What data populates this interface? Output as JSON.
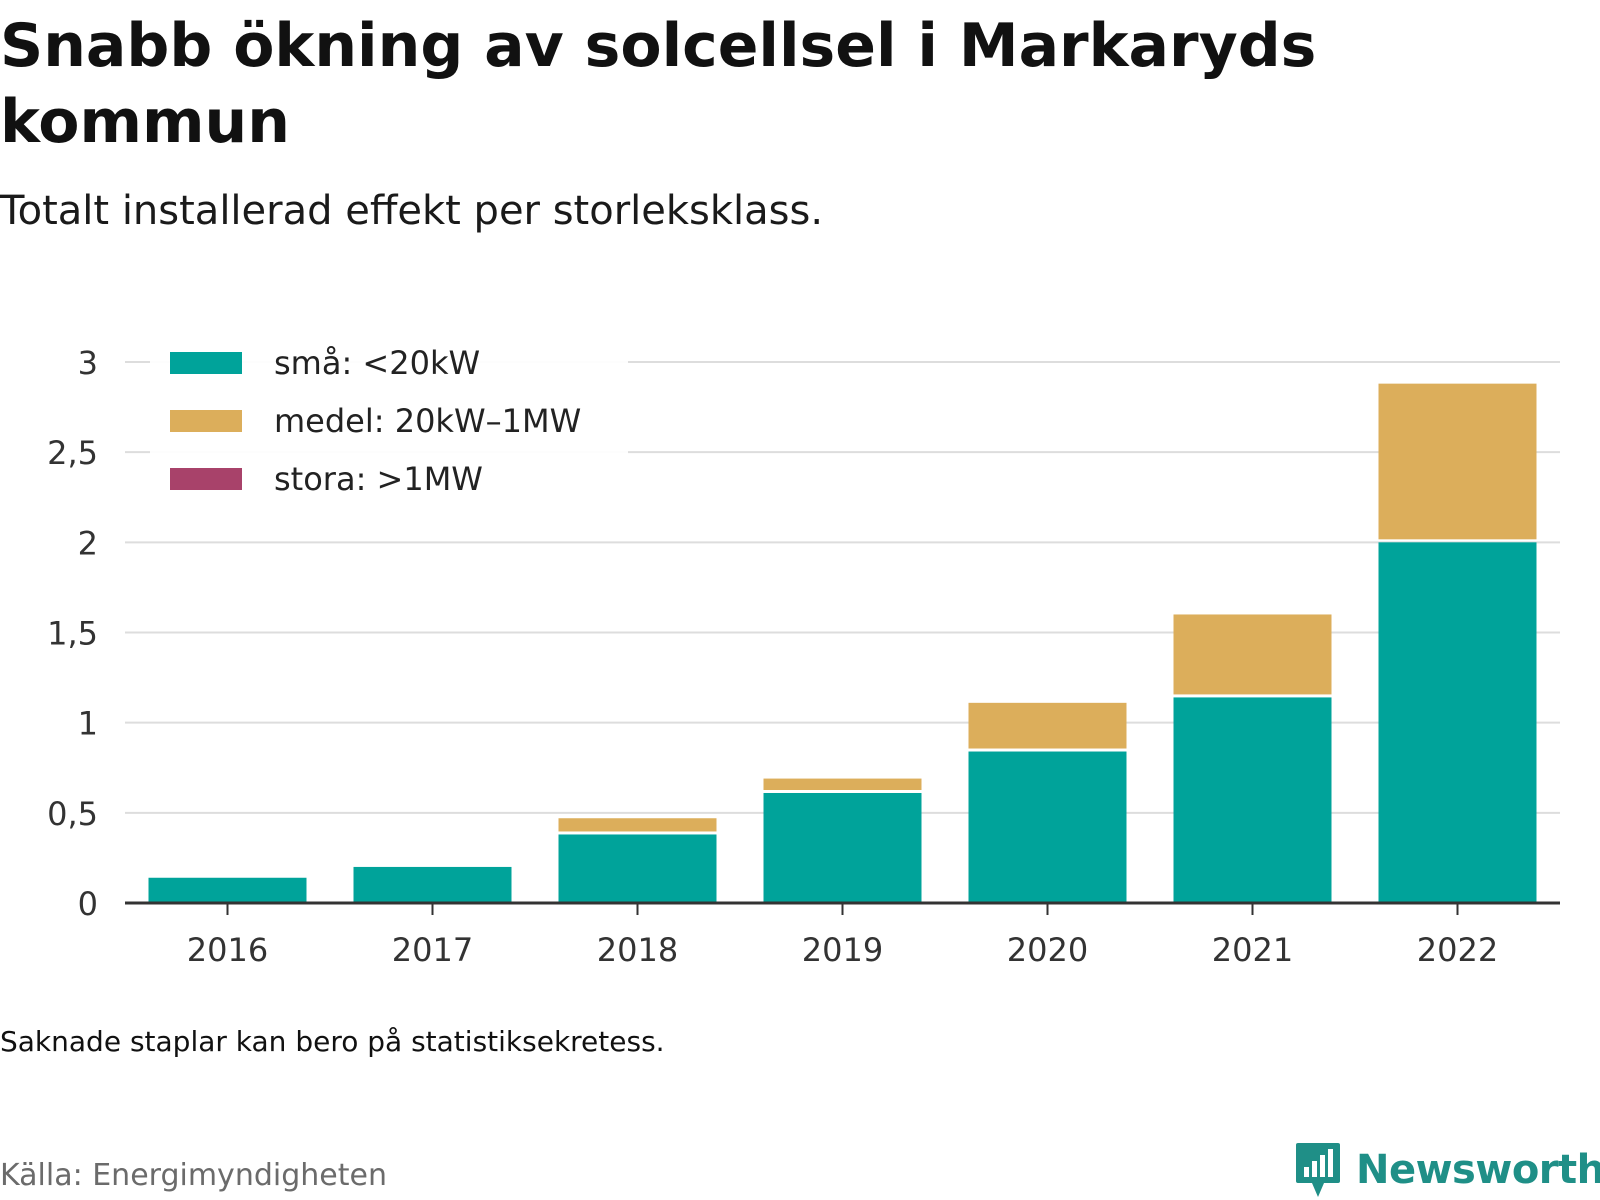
{
  "title": "Snabb ökning av solcellsel i Markaryds kommun",
  "subtitle": "Totalt installerad effekt per storleksklass.",
  "note": "Saknade staplar kan bero på statistiksekretess.",
  "source": "Källa: Energimyndigheten",
  "brand": "Newsworthy",
  "colors": {
    "sma": "#00a39a",
    "medel": "#dcae5b",
    "stora": "#a8426a",
    "grid": "#dddddd",
    "axis": "#333333",
    "brand": "#1f8f87"
  },
  "chart_data": {
    "type": "bar",
    "stacked": true,
    "categories": [
      "2016",
      "2017",
      "2018",
      "2019",
      "2020",
      "2021",
      "2022"
    ],
    "series": [
      {
        "name": "små: <20kW",
        "color": "#00a39a",
        "values": [
          0.14,
          0.2,
          0.38,
          0.61,
          0.84,
          1.14,
          2.0
        ]
      },
      {
        "name": "medel: 20kW–1MW",
        "color": "#dcae5b",
        "values": [
          0,
          0,
          0.09,
          0.08,
          0.27,
          0.46,
          0.88
        ]
      },
      {
        "name": "stora: >1MW",
        "color": "#a8426a",
        "values": [
          0,
          0,
          0,
          0,
          0,
          0,
          0
        ]
      }
    ],
    "yticks": [
      0,
      0.5,
      1,
      1.5,
      2,
      2.5,
      3
    ],
    "ytick_labels": [
      "0",
      "0,5",
      "1",
      "1,5",
      "2",
      "2,5",
      "3"
    ],
    "ylim": [
      0,
      3
    ],
    "grid": true,
    "legend_position": "top-left"
  }
}
